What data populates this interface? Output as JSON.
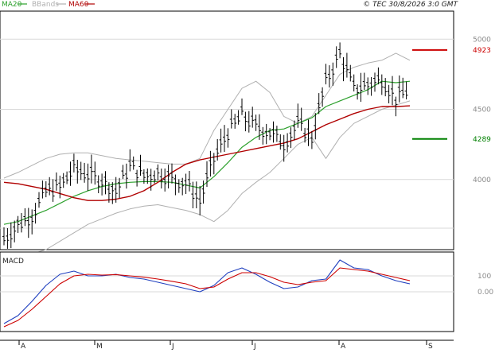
{
  "header": {
    "legend": [
      {
        "label": "MA20",
        "color": "#2ca02c"
      },
      {
        "label": "BBands",
        "color": "#b0b0b0"
      },
      {
        "label": "MA60",
        "color": "#b00000"
      }
    ],
    "copyright": "© TEC 30/8/2026 3:0 GMT"
  },
  "chart_data": [
    {
      "type": "line",
      "panel": "price",
      "title": "",
      "y_ticks": [
        {
          "value": 4000,
          "label": "4000"
        },
        {
          "value": 4500,
          "label": "4500"
        },
        {
          "value": 5000,
          "label": "5000"
        }
      ],
      "ylim": [
        3500,
        5200
      ],
      "grid": true,
      "x_ticks": [
        "A",
        "M",
        "J",
        "J",
        "A",
        "S"
      ],
      "annotations": [
        {
          "label": "4923",
          "value": 4923,
          "color": "#cc0000"
        },
        {
          "label": "4289",
          "value": 4289,
          "color": "#008000"
        }
      ],
      "series": [
        {
          "name": "MA20",
          "color": "#2ca02c",
          "values": [
            3680,
            3700,
            3740,
            3780,
            3830,
            3880,
            3920,
            3950,
            3970,
            3980,
            3985,
            3985,
            3980,
            3960,
            3940,
            4020,
            4120,
            4230,
            4300,
            4350,
            4360,
            4400,
            4440,
            4520,
            4560,
            4600,
            4640,
            4700,
            4690,
            4700
          ]
        },
        {
          "name": "MA60",
          "color": "#b00000",
          "values": [
            3980,
            3970,
            3950,
            3930,
            3900,
            3870,
            3850,
            3850,
            3860,
            3880,
            3920,
            3980,
            4050,
            4110,
            4140,
            4160,
            4180,
            4200,
            4220,
            4240,
            4260,
            4290,
            4340,
            4390,
            4430,
            4470,
            4500,
            4520,
            4520,
            4525
          ]
        },
        {
          "name": "BBands upper",
          "color": "#b0b0b0",
          "values": [
            4010,
            4050,
            4100,
            4150,
            4180,
            4190,
            4190,
            4170,
            4150,
            4140,
            4130,
            4120,
            4110,
            4110,
            4150,
            4350,
            4500,
            4650,
            4700,
            4620,
            4450,
            4400,
            4450,
            4600,
            4750,
            4800,
            4830,
            4850,
            4900,
            4850
          ]
        },
        {
          "name": "BBands lower",
          "color": "#b0b0b0",
          "values": [
            3450,
            3460,
            3470,
            3500,
            3560,
            3620,
            3680,
            3720,
            3760,
            3790,
            3810,
            3820,
            3800,
            3780,
            3750,
            3700,
            3780,
            3900,
            3980,
            4050,
            4150,
            4250,
            4300,
            4150,
            4300,
            4400,
            4450,
            4500,
            4530,
            4560
          ]
        },
        {
          "name": "Close",
          "color": "#000000",
          "values": [
            3580,
            3680,
            3750,
            3920,
            3950,
            4080,
            4040,
            4000,
            3920,
            4100,
            4030,
            4050,
            4010,
            3980,
            3850,
            4150,
            4340,
            4460,
            4380,
            4340,
            4260,
            4400,
            4300,
            4700,
            4900,
            4650,
            4680,
            4720,
            4580,
            4650
          ]
        }
      ]
    },
    {
      "type": "line",
      "panel": "macd",
      "title": "MACD",
      "y_ticks": [
        {
          "value": 100,
          "label": "100"
        },
        {
          "value": 0,
          "label": "0.00"
        }
      ],
      "ylim": [
        -250,
        250
      ],
      "grid": true,
      "series": [
        {
          "name": "MACD",
          "color": "#1f3fbf",
          "values": [
            -200,
            -150,
            -60,
            40,
            110,
            130,
            100,
            100,
            110,
            90,
            80,
            60,
            40,
            20,
            0,
            40,
            120,
            150,
            110,
            60,
            20,
            30,
            70,
            80,
            200,
            150,
            140,
            100,
            70,
            50
          ]
        },
        {
          "name": "Signal",
          "color": "#cc0000",
          "values": [
            -220,
            -180,
            -110,
            -30,
            50,
            100,
            110,
            105,
            108,
            100,
            92,
            80,
            66,
            50,
            20,
            30,
            80,
            120,
            120,
            95,
            60,
            45,
            60,
            70,
            150,
            140,
            130,
            110,
            90,
            70
          ]
        }
      ]
    }
  ]
}
